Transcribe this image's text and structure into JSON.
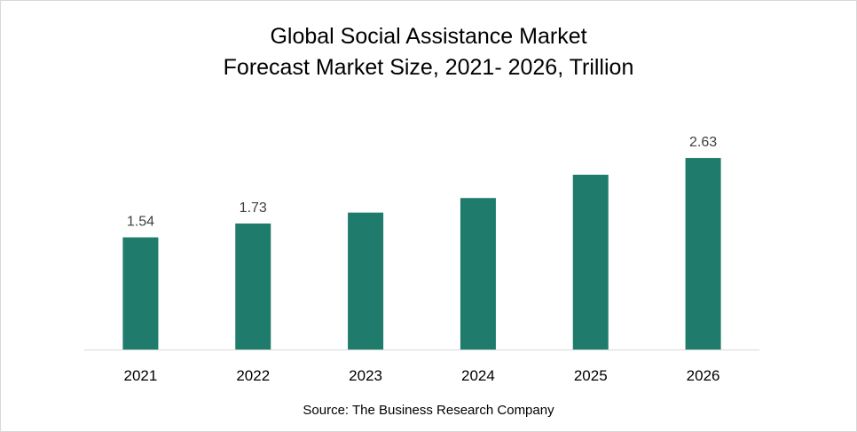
{
  "chart_data": {
    "type": "bar",
    "title": "Global Social Assistance Market",
    "subtitle": "Forecast Market Size, 2021- 2026, Trillion",
    "categories": [
      "2021",
      "2022",
      "2023",
      "2024",
      "2025",
      "2026"
    ],
    "values": [
      1.54,
      1.73,
      1.88,
      2.08,
      2.4,
      2.63
    ],
    "data_labels": [
      "1.54",
      "1.73",
      "",
      "",
      "",
      "2.63"
    ],
    "xlabel": "",
    "ylabel": "",
    "ylim": [
      0,
      2.8
    ],
    "grid": false,
    "legend": "none",
    "bar_color": "#1f7b6b",
    "source": "Source: The Business Research Company"
  }
}
